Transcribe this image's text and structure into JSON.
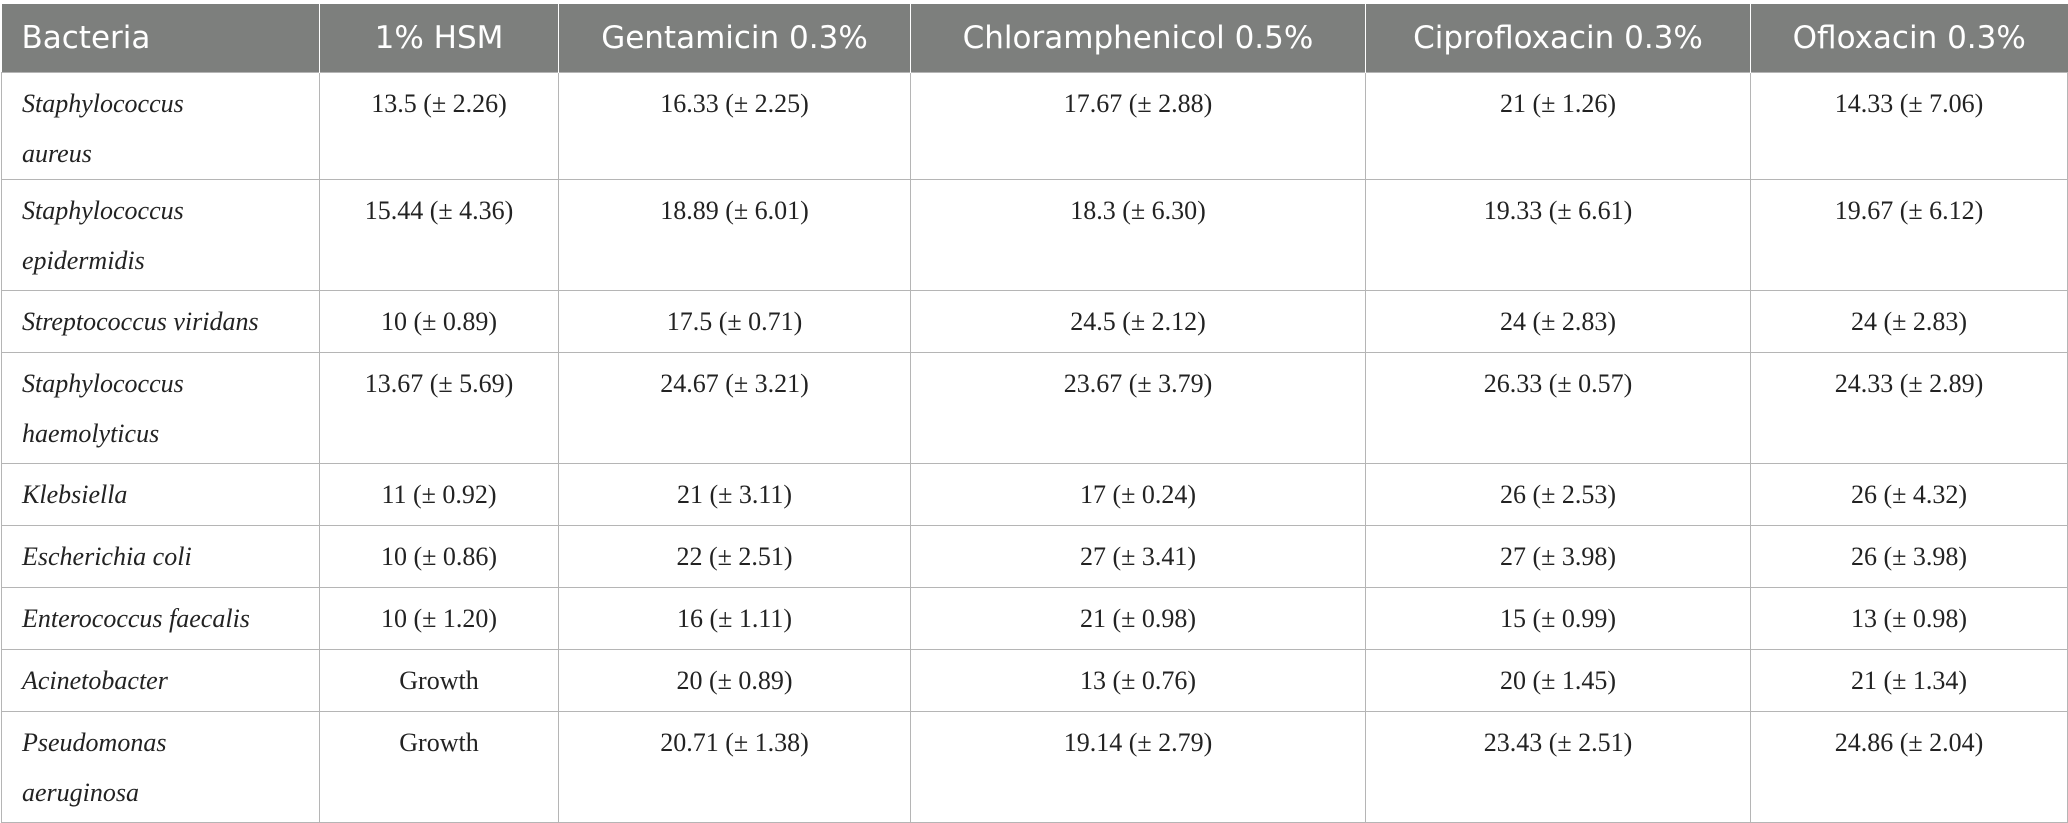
{
  "table": {
    "header": [
      "Bacteria",
      "1% HSM",
      "Gentamicin 0.3%",
      "Chloramphenicol 0.5%",
      "Ciprofloxacin 0.3%",
      "Ofloxacin 0.3%"
    ],
    "rows": [
      [
        "Staphylococcus aureus",
        "13.5 (± 2.26)",
        "16.33 (± 2.25)",
        "17.67 (± 2.88)",
        "21 (± 1.26)",
        "14.33 (± 7.06)"
      ],
      [
        "Staphylococcus epidermidis",
        "15.44 (± 4.36)",
        "18.89 (± 6.01)",
        "18.3 (± 6.30)",
        "19.33 (± 6.61)",
        "19.67 (± 6.12)"
      ],
      [
        "Streptococcus viridans",
        "10 (± 0.89)",
        "17.5 (± 0.71)",
        "24.5 (± 2.12)",
        "24 (± 2.83)",
        "24 (± 2.83)"
      ],
      [
        "Staphylococcus haemolyticus",
        "13.67 (± 5.69)",
        "24.67 (± 3.21)",
        "23.67 (± 3.79)",
        "26.33 (± 0.57)",
        "24.33 (± 2.89)"
      ],
      [
        "Klebsiella",
        "11 (± 0.92)",
        "21 (± 3.11)",
        "17 (± 0.24)",
        "26 (± 2.53)",
        "26 (± 4.32)"
      ],
      [
        "Escherichia coli",
        "10 (± 0.86)",
        "22 (± 2.51)",
        "27 (± 3.41)",
        "27 (± 3.98)",
        "26 (± 3.98)"
      ],
      [
        "Enterococcus faecalis",
        "10 (± 1.20)",
        "16 (± 1.11)",
        "21 (± 0.98)",
        "15 (± 0.99)",
        "13 (± 0.98)"
      ],
      [
        "Acinetobacter",
        "Growth",
        "20 (± 0.89)",
        "13 (± 0.76)",
        "20 (± 1.45)",
        "21 (± 1.34)"
      ],
      [
        "Pseudomonas aeruginosa",
        "Growth",
        "20.71 (± 1.38)",
        "19.14 (± 2.79)",
        "23.43 (± 2.51)",
        "24.86 (± 2.04)"
      ]
    ]
  }
}
